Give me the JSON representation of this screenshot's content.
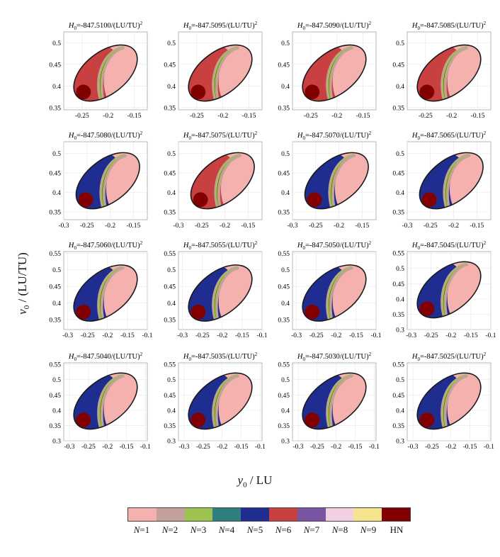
{
  "figure": {
    "xlabel_var": "y",
    "xlabel_sub": "0",
    "xlabel_unit": " / LU",
    "ylabel_var": "v",
    "ylabel_sub": "0",
    "ylabel_unit": " / (LU/TU)"
  },
  "chart_data": {
    "type": "heatmap",
    "panels": [
      {
        "title": "H0=-847.5100/(LU/TU)2",
        "xticks": [
          "-0.25",
          "-0.2",
          "-0.15"
        ],
        "yticks": [
          "0.35",
          "0.4",
          "0.45",
          "0.5"
        ],
        "xlim": [
          -0.285,
          -0.125
        ],
        "ylim": [
          0.345,
          0.525
        ],
        "dominant": "N=6"
      },
      {
        "title": "H0=-847.5095/(LU/TU)2",
        "xticks": [
          "-0.25",
          "-0.2",
          "-0.15"
        ],
        "yticks": [
          "0.35",
          "0.4",
          "0.45",
          "0.5"
        ],
        "xlim": [
          -0.285,
          -0.125
        ],
        "ylim": [
          0.345,
          0.525
        ],
        "dominant": "N=6"
      },
      {
        "title": "H0=-847.5090/(LU/TU)2",
        "xticks": [
          "-0.25",
          "-0.2",
          "-0.15"
        ],
        "yticks": [
          "0.35",
          "0.4",
          "0.45",
          "0.5"
        ],
        "xlim": [
          -0.285,
          -0.125
        ],
        "ylim": [
          0.345,
          0.525
        ],
        "dominant": "N=6"
      },
      {
        "title": "H0=-847.5085/(LU/TU)2",
        "xticks": [
          "-0.25",
          "-0.2",
          "-0.15"
        ],
        "yticks": [
          "0.35",
          "0.4",
          "0.45",
          "0.5"
        ],
        "xlim": [
          -0.285,
          -0.125
        ],
        "ylim": [
          0.345,
          0.525
        ],
        "dominant": "N=6"
      },
      {
        "title": "H0=-847.5080/(LU/TU)2",
        "xticks": [
          "-0.3",
          "-0.25",
          "-0.2",
          "-0.15"
        ],
        "yticks": [
          "0.35",
          "0.4",
          "0.45",
          "0.5"
        ],
        "xlim": [
          -0.3,
          -0.12
        ],
        "ylim": [
          0.33,
          0.53
        ],
        "dominant": "N=5"
      },
      {
        "title": "H0=-847.5075/(LU/TU)2",
        "xticks": [
          "-0.3",
          "-0.25",
          "-0.2",
          "-0.15"
        ],
        "yticks": [
          "0.35",
          "0.4",
          "0.45",
          "0.5"
        ],
        "xlim": [
          -0.3,
          -0.12
        ],
        "ylim": [
          0.33,
          0.53
        ],
        "dominant": "N=6"
      },
      {
        "title": "H0=-847.5070/(LU/TU)2",
        "xticks": [
          "-0.3",
          "-0.25",
          "-0.2",
          "-0.15"
        ],
        "yticks": [
          "0.35",
          "0.4",
          "0.45",
          "0.5"
        ],
        "xlim": [
          -0.3,
          -0.12
        ],
        "ylim": [
          0.33,
          0.53
        ],
        "dominant": "N=5"
      },
      {
        "title": "H0=-847.5065/(LU/TU)2",
        "xticks": [
          "-0.3",
          "-0.25",
          "-0.2",
          "-0.15"
        ],
        "yticks": [
          "0.35",
          "0.4",
          "0.45",
          "0.5"
        ],
        "xlim": [
          -0.3,
          -0.12
        ],
        "ylim": [
          0.33,
          0.53
        ],
        "dominant": "N=5"
      },
      {
        "title": "H0=-847.5060/(LU/TU)2",
        "xticks": [
          "-0.3",
          "-0.25",
          "-0.2",
          "-0.15",
          "-0.1"
        ],
        "yticks": [
          "0.35",
          "0.4",
          "0.45",
          "0.5",
          "0.55"
        ],
        "xlim": [
          -0.31,
          -0.1
        ],
        "ylim": [
          0.32,
          0.555
        ],
        "dominant": "N=5"
      },
      {
        "title": "H0=-847.5055/(LU/TU)2",
        "xticks": [
          "-0.3",
          "-0.25",
          "-0.2",
          "-0.15",
          "-0.1"
        ],
        "yticks": [
          "0.35",
          "0.4",
          "0.45",
          "0.5",
          "0.55"
        ],
        "xlim": [
          -0.31,
          -0.1
        ],
        "ylim": [
          0.32,
          0.555
        ],
        "dominant": "N=5"
      },
      {
        "title": "H0=-847.5050/(LU/TU)2",
        "xticks": [
          "-0.3",
          "-0.25",
          "-0.2",
          "-0.15",
          "-0.1"
        ],
        "yticks": [
          "0.35",
          "0.4",
          "0.45",
          "0.5",
          "0.55"
        ],
        "xlim": [
          -0.31,
          -0.1
        ],
        "ylim": [
          0.32,
          0.555
        ],
        "dominant": "N=5"
      },
      {
        "title": "H0=-847.5045/(LU/TU)2",
        "xticks": [
          "-0.3",
          "-0.25",
          "-0.2",
          "-0.15",
          "-0.1"
        ],
        "yticks": [
          "0.3",
          "0.35",
          "0.4",
          "0.45",
          "0.5",
          "0.55"
        ],
        "xlim": [
          -0.31,
          -0.1
        ],
        "ylim": [
          0.3,
          0.555
        ],
        "dominant": "N=5"
      },
      {
        "title": "H0=-847.5040/(LU/TU)2",
        "xticks": [
          "-0.3",
          "-0.25",
          "-0.2",
          "-0.15",
          "-0.1"
        ],
        "yticks": [
          "0.3",
          "0.35",
          "0.4",
          "0.45",
          "0.5",
          "0.55"
        ],
        "xlim": [
          -0.315,
          -0.095
        ],
        "ylim": [
          0.3,
          0.555
        ],
        "dominant": "N=5"
      },
      {
        "title": "H0=-847.5035/(LU/TU)2",
        "xticks": [
          "-0.3",
          "-0.25",
          "-0.2",
          "-0.15",
          "-0.1"
        ],
        "yticks": [
          "0.3",
          "0.35",
          "0.4",
          "0.45",
          "0.5",
          "0.55"
        ],
        "xlim": [
          -0.315,
          -0.095
        ],
        "ylim": [
          0.3,
          0.555
        ],
        "dominant": "N=5"
      },
      {
        "title": "H0=-847.5030/(LU/TU)2",
        "xticks": [
          "-0.3",
          "-0.25",
          "-0.2",
          "-0.15",
          "-0.1"
        ],
        "yticks": [
          "0.3",
          "0.35",
          "0.4",
          "0.45",
          "0.5",
          "0.55"
        ],
        "xlim": [
          -0.315,
          -0.095
        ],
        "ylim": [
          0.3,
          0.555
        ],
        "dominant": "N=5"
      },
      {
        "title": "H0=-847.5025/(LU/TU)2",
        "xticks": [
          "-0.3",
          "-0.25",
          "-0.2",
          "-0.15",
          "-0.1"
        ],
        "yticks": [
          "0.3",
          "0.35",
          "0.4",
          "0.45",
          "0.5",
          "0.55"
        ],
        "xlim": [
          -0.315,
          -0.095
        ],
        "ylim": [
          0.3,
          0.555
        ],
        "dominant": "N=5"
      }
    ],
    "colorbar": [
      {
        "label": "N=1",
        "color": "#f4b1ae"
      },
      {
        "label": "N=2",
        "color": "#c2a09b"
      },
      {
        "label": "N=3",
        "color": "#9cc250"
      },
      {
        "label": "N=4",
        "color": "#2f7f7f"
      },
      {
        "label": "N=5",
        "color": "#1e2d8f"
      },
      {
        "label": "N=6",
        "color": "#c94040"
      },
      {
        "label": "N=7",
        "color": "#7a55a3"
      },
      {
        "label": "N=8",
        "color": "#f2d0e3"
      },
      {
        "label": "N=9",
        "color": "#f6e58d"
      },
      {
        "label": "HN",
        "color": "#820000"
      }
    ],
    "grid": true
  }
}
